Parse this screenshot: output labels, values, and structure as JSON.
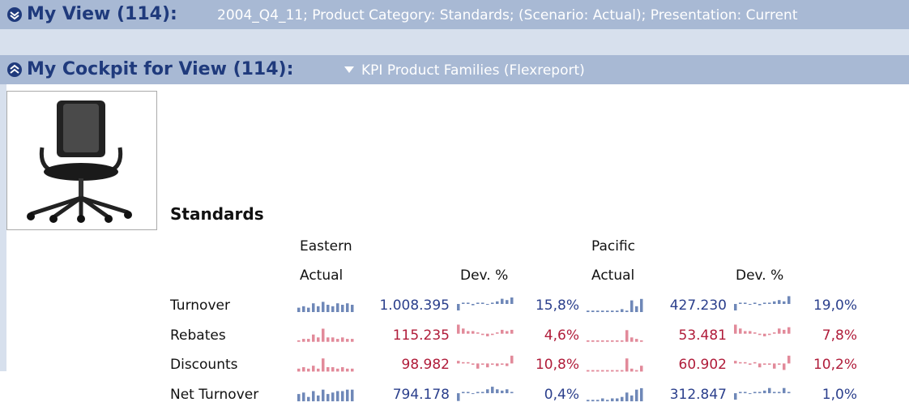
{
  "header": {
    "title": "My View (114):",
    "context": "2004_Q4_11; Product Category: Standards; (Scenario: Actual); Presentation: Current"
  },
  "cockpit": {
    "title": "My Cockpit for View (114):",
    "report": "KPI Product Families (Flexreport)"
  },
  "table": {
    "title": "Standards",
    "regions": [
      "Eastern",
      "Pacific"
    ],
    "columns": [
      "Actual",
      "Dev. %",
      "Actual",
      "Dev. %"
    ],
    "rows": [
      {
        "label": "Turnover",
        "color": "#2b3f8c",
        "spark_color": "#6f88b8",
        "cells": [
          "1.008.395",
          "15,8%",
          "427.230",
          "19,0%"
        ],
        "sparks": [
          [
            3,
            4,
            3,
            6,
            4,
            7,
            5,
            4,
            6,
            5,
            6,
            5
          ],
          [
            -5,
            1,
            1,
            -1,
            1,
            1,
            0,
            1,
            2,
            4,
            3,
            5
          ],
          [
            1,
            1,
            1,
            1,
            1,
            1,
            1,
            2,
            1,
            8,
            4,
            9
          ],
          [
            -5,
            1,
            1,
            0,
            1,
            -1,
            1,
            1,
            2,
            3,
            2,
            6
          ]
        ]
      },
      {
        "label": "Rebates",
        "color": "#b01c3a",
        "spark_color": "#e28a9a",
        "cells": [
          "115.235",
          "4,6%",
          "53.481",
          "7,8%"
        ],
        "sparks": [
          [
            1,
            2,
            2,
            5,
            3,
            9,
            3,
            3,
            2,
            3,
            2,
            2
          ],
          [
            7,
            4,
            2,
            2,
            1,
            -1,
            -2,
            -1,
            1,
            3,
            2,
            3
          ],
          [
            1,
            1,
            1,
            1,
            1,
            1,
            1,
            1,
            8,
            3,
            2,
            1
          ],
          [
            7,
            4,
            2,
            2,
            1,
            -1,
            -2,
            -1,
            1,
            4,
            3,
            5
          ]
        ]
      },
      {
        "label": "Discounts",
        "color": "#b01c3a",
        "spark_color": "#e28a9a",
        "cells": [
          "98.982",
          "10,8%",
          "60.902",
          "10,2%"
        ],
        "sparks": [
          [
            2,
            3,
            2,
            4,
            2,
            9,
            3,
            3,
            2,
            3,
            2,
            2
          ],
          [
            2,
            1,
            1,
            -1,
            -4,
            -1,
            -3,
            -1,
            -2,
            -1,
            -2,
            6
          ],
          [
            1,
            1,
            1,
            1,
            1,
            1,
            1,
            1,
            9,
            2,
            1,
            4
          ],
          [
            2,
            1,
            1,
            -1,
            1,
            -3,
            -1,
            -1,
            -4,
            -1,
            -5,
            6
          ]
        ]
      },
      {
        "label": "Net Turnover",
        "color": "#2b3f8c",
        "spark_color": "#6f88b8",
        "cells": [
          "794.178",
          "0,4%",
          "312.847",
          "1,0%"
        ],
        "sparks": [
          [
            5,
            6,
            3,
            7,
            4,
            8,
            5,
            6,
            7,
            7,
            8,
            8
          ],
          [
            -6,
            1,
            1,
            0,
            1,
            1,
            3,
            5,
            3,
            2,
            3,
            1
          ],
          [
            1,
            1,
            1,
            2,
            1,
            2,
            2,
            3,
            6,
            4,
            8,
            9
          ],
          [
            -5,
            1,
            1,
            0,
            1,
            1,
            2,
            4,
            1,
            1,
            4,
            1
          ]
        ]
      }
    ]
  }
}
